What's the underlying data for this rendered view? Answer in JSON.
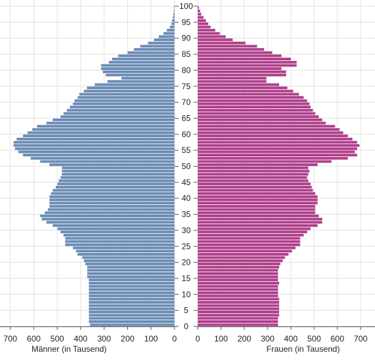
{
  "chart_data": {
    "type": "bar",
    "subtype": "population-pyramid",
    "age_ticks": [
      0,
      5,
      10,
      15,
      20,
      25,
      30,
      35,
      40,
      45,
      50,
      55,
      60,
      65,
      70,
      75,
      80,
      85,
      90,
      95,
      100
    ],
    "left_ticks": [
      700,
      600,
      500,
      400,
      300,
      200,
      100,
      0
    ],
    "right_ticks": [
      0,
      100,
      200,
      300,
      400,
      500,
      600,
      700
    ],
    "xlabel_left": "Männer (in Tausend)",
    "xlabel_right": "Frauen (in Tausend)",
    "xlim": [
      0,
      700
    ],
    "age_range": [
      0,
      100
    ],
    "grid": true,
    "colors": {
      "men": "#6b8cb6",
      "women": "#b03f8b",
      "grid": "#e3e3e3",
      "axis": "#555555"
    },
    "ages": [
      0,
      1,
      2,
      3,
      4,
      5,
      6,
      7,
      8,
      9,
      10,
      11,
      12,
      13,
      14,
      15,
      16,
      17,
      18,
      19,
      20,
      21,
      22,
      23,
      24,
      25,
      26,
      27,
      28,
      29,
      30,
      31,
      32,
      33,
      34,
      35,
      36,
      37,
      38,
      39,
      40,
      41,
      42,
      43,
      44,
      45,
      46,
      47,
      48,
      49,
      50,
      51,
      52,
      53,
      54,
      55,
      56,
      57,
      58,
      59,
      60,
      61,
      62,
      63,
      64,
      65,
      66,
      67,
      68,
      69,
      70,
      71,
      72,
      73,
      74,
      75,
      76,
      77,
      78,
      79,
      80,
      81,
      82,
      83,
      84,
      85,
      86,
      87,
      88,
      89,
      90,
      91,
      92,
      93,
      94,
      95,
      96,
      97,
      98,
      99
    ],
    "series": [
      {
        "name": "Männer",
        "values": [
          360,
          365,
          365,
          365,
          365,
          365,
          365,
          365,
          365,
          365,
          365,
          365,
          365,
          365,
          365,
          372,
          372,
          372,
          372,
          380,
          386,
          393,
          413,
          420,
          433,
          466,
          466,
          466,
          473,
          486,
          499,
          519,
          546,
          566,
          573,
          553,
          540,
          533,
          533,
          533,
          533,
          526,
          519,
          506,
          499,
          493,
          486,
          480,
          480,
          480,
          533,
          573,
          613,
          646,
          666,
          680,
          686,
          686,
          673,
          646,
          626,
          606,
          586,
          546,
          519,
          486,
          473,
          459,
          446,
          433,
          426,
          413,
          406,
          386,
          373,
          340,
          286,
          226,
          293,
          306,
          313,
          313,
          280,
          266,
          240,
          200,
          173,
          146,
          113,
          87,
          67,
          47,
          33,
          20,
          13,
          10,
          7,
          5,
          3,
          2
        ]
      },
      {
        "name": "Frauen",
        "values": [
          345,
          345,
          345,
          350,
          350,
          350,
          350,
          350,
          350,
          345,
          345,
          345,
          345,
          350,
          345,
          345,
          345,
          345,
          350,
          355,
          365,
          375,
          390,
          405,
          420,
          440,
          440,
          440,
          455,
          470,
          485,
          515,
          535,
          535,
          520,
          505,
          505,
          505,
          515,
          515,
          515,
          505,
          495,
          490,
          485,
          475,
          470,
          475,
          480,
          475,
          515,
          575,
          645,
          685,
          675,
          685,
          695,
          685,
          665,
          645,
          625,
          610,
          590,
          550,
          535,
          520,
          505,
          495,
          485,
          480,
          470,
          455,
          435,
          410,
          385,
          350,
          295,
          295,
          380,
          380,
          360,
          425,
          425,
          400,
          360,
          320,
          285,
          255,
          205,
          150,
          120,
          95,
          75,
          55,
          45,
          35,
          25,
          15,
          10,
          5
        ]
      }
    ]
  }
}
